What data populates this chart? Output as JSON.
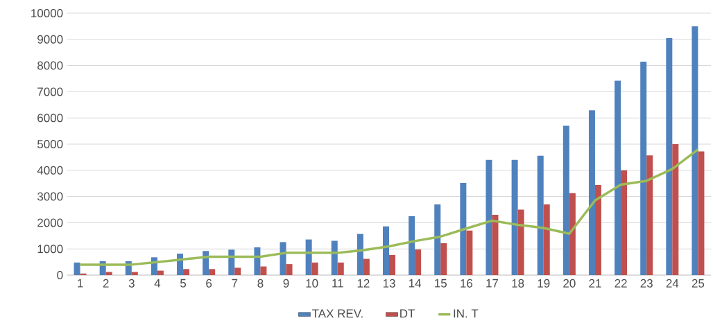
{
  "chart_data": {
    "type": "bar",
    "categories": [
      "1",
      "2",
      "3",
      "4",
      "5",
      "6",
      "7",
      "8",
      "9",
      "10",
      "11",
      "12",
      "13",
      "14",
      "15",
      "16",
      "17",
      "18",
      "19",
      "20",
      "21",
      "22",
      "23",
      "24",
      "25"
    ],
    "series": [
      {
        "name": "TAX REV.",
        "color": "#4f81bd",
        "values": [
          480,
          530,
          530,
          680,
          820,
          920,
          970,
          1060,
          1260,
          1360,
          1310,
          1570,
          1860,
          2250,
          2700,
          3520,
          4400,
          4400,
          4560,
          5700,
          6290,
          7420,
          8150,
          9050,
          9500
        ]
      },
      {
        "name": "DT",
        "color": "#c0504d",
        "values": [
          60,
          120,
          120,
          170,
          230,
          230,
          280,
          330,
          420,
          480,
          480,
          620,
          770,
          980,
          1220,
          1700,
          2300,
          2500,
          2700,
          3130,
          3440,
          4000,
          4570,
          5000,
          4720
        ]
      },
      {
        "name": "IN. T",
        "type": "line",
        "color": "#9bbb59",
        "values": [
          400,
          400,
          400,
          500,
          600,
          700,
          700,
          700,
          850,
          850,
          850,
          950,
          1100,
          1300,
          1470,
          1780,
          2080,
          1920,
          1800,
          1580,
          2850,
          3450,
          3600,
          4050,
          4800
        ]
      }
    ],
    "ylim": [
      0,
      10000
    ],
    "yticks": [
      0,
      1000,
      2000,
      3000,
      4000,
      5000,
      6000,
      7000,
      8000,
      9000,
      10000
    ],
    "grid": "y",
    "legend": "bottom"
  }
}
